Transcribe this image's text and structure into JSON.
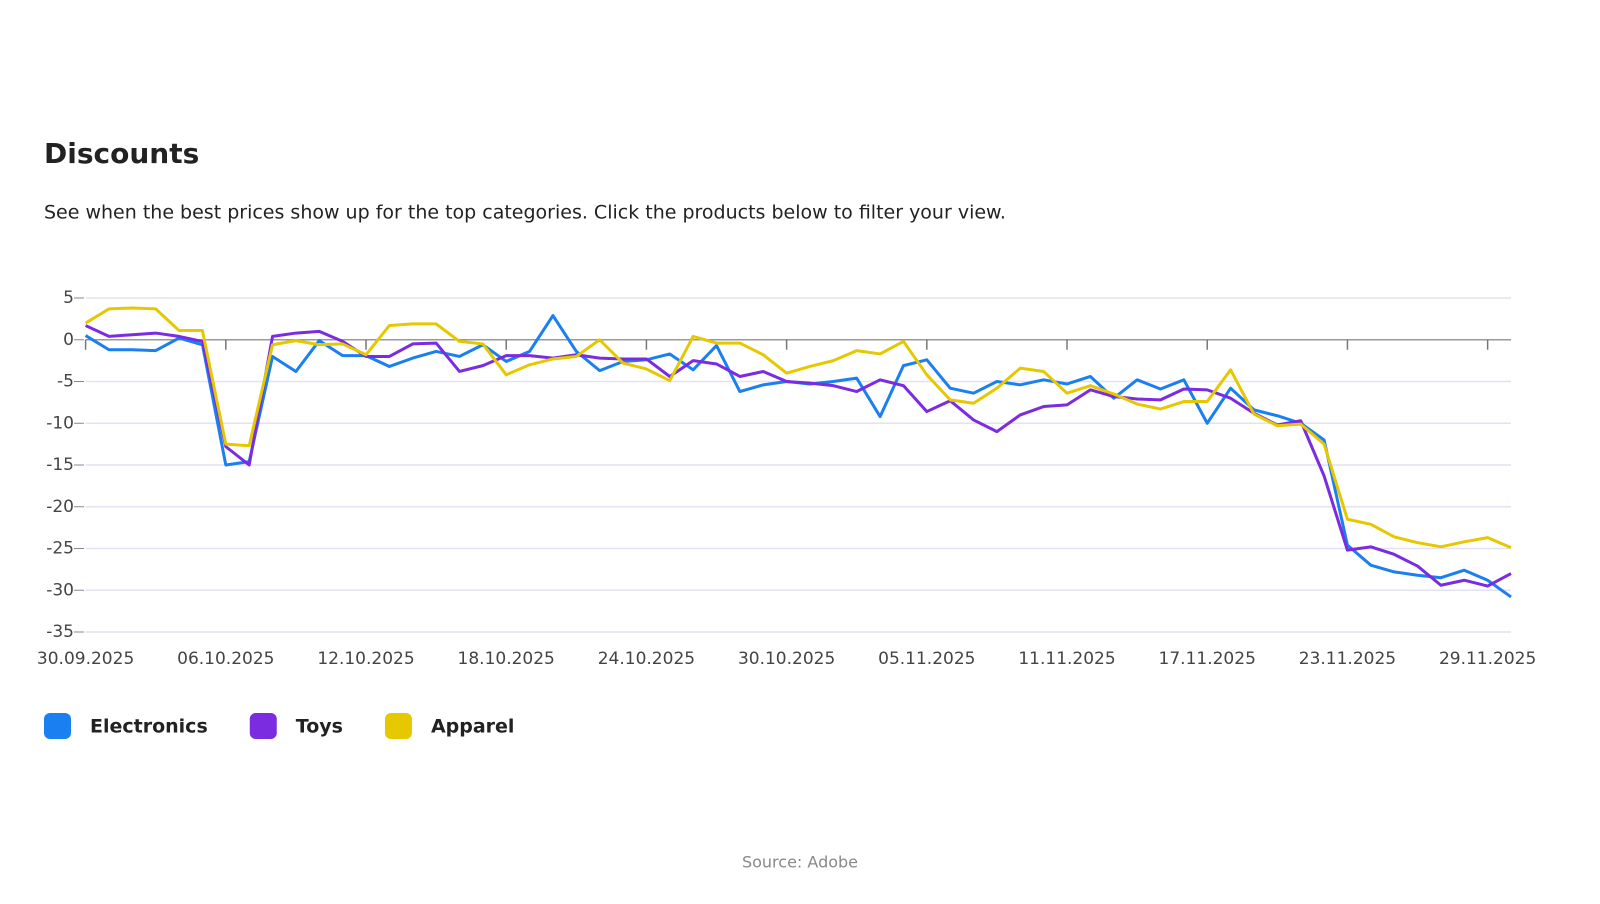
{
  "chart_data": {
    "type": "line",
    "title": "Discounts",
    "subtitle": "See when the best prices show up for the top categories. Click the products below to filter your view.",
    "source": "Source: Adobe",
    "x": [
      "30.09.2025",
      "01.10.2025",
      "02.10.2025",
      "03.10.2025",
      "04.10.2025",
      "05.10.2025",
      "06.10.2025",
      "07.10.2025",
      "08.10.2025",
      "09.10.2025",
      "10.10.2025",
      "11.10.2025",
      "12.10.2025",
      "13.10.2025",
      "14.10.2025",
      "15.10.2025",
      "16.10.2025",
      "17.10.2025",
      "18.10.2025",
      "19.10.2025",
      "20.10.2025",
      "21.10.2025",
      "22.10.2025",
      "23.10.2025",
      "24.10.2025",
      "25.10.2025",
      "26.10.2025",
      "27.10.2025",
      "28.10.2025",
      "29.10.2025",
      "30.10.2025",
      "31.10.2025",
      "01.11.2025",
      "02.11.2025",
      "03.11.2025",
      "04.11.2025",
      "05.11.2025",
      "06.11.2025",
      "07.11.2025",
      "08.11.2025",
      "09.11.2025",
      "10.11.2025",
      "11.11.2025",
      "12.11.2025",
      "13.11.2025",
      "14.11.2025",
      "15.11.2025",
      "16.11.2025",
      "17.11.2025",
      "18.11.2025",
      "19.11.2025",
      "20.11.2025",
      "21.11.2025",
      "22.11.2025",
      "23.11.2025",
      "24.11.2025",
      "25.11.2025",
      "26.11.2025",
      "27.11.2025",
      "28.11.2025",
      "29.11.2025",
      "30.11.2025"
    ],
    "xticks": [
      "30.09.2025",
      "06.10.2025",
      "12.10.2025",
      "18.10.2025",
      "24.10.2025",
      "30.10.2025",
      "05.11.2025",
      "11.11.2025",
      "17.11.2025",
      "23.11.2025",
      "29.11.2025"
    ],
    "ylim": [
      -35,
      5
    ],
    "yticks": [
      5,
      0,
      -5,
      -10,
      -15,
      -20,
      -25,
      -30,
      -35
    ],
    "grid": true,
    "series": [
      {
        "name": "Electronics",
        "color": "#1a7ff0",
        "values": [
          0.5,
          -1.2,
          -1.2,
          -1.3,
          0.2,
          -0.6,
          -15,
          -14.6,
          -2,
          -3.8,
          -0.1,
          -1.9,
          -1.9,
          -3.2,
          -2.2,
          -1.4,
          -2,
          -0.6,
          -2.6,
          -1.4,
          2.9,
          -1.4,
          -3.7,
          -2.6,
          -2.4,
          -1.7,
          -3.6,
          -0.7,
          -6.2,
          -5.4,
          -5,
          -5.3,
          -5,
          -4.6,
          -9.2,
          -3.1,
          -2.4,
          -5.8,
          -6.4,
          -5,
          -5.4,
          -4.8,
          -5.3,
          -4.4,
          -7,
          -4.8,
          -5.9,
          -4.8,
          -10,
          -5.8,
          -8.4,
          -9.1,
          -10,
          -12,
          -24.6,
          -27,
          -27.8,
          -28.2,
          -28.5,
          -27.6,
          -28.8,
          -30.8
        ]
      },
      {
        "name": "Toys",
        "color": "#7b2be0",
        "values": [
          1.7,
          0.4,
          0.6,
          0.8,
          0.4,
          -0.2,
          -12.8,
          -15,
          0.4,
          0.8,
          1,
          -0.2,
          -2,
          -2,
          -0.5,
          -0.4,
          -3.8,
          -3.1,
          -1.9,
          -1.9,
          -2.2,
          -1.8,
          -2.2,
          -2.3,
          -2.3,
          -4.4,
          -2.5,
          -2.9,
          -4.4,
          -3.8,
          -5,
          -5.2,
          -5.5,
          -6.2,
          -4.8,
          -5.5,
          -8.6,
          -7.3,
          -9.6,
          -11,
          -9,
          -8,
          -7.8,
          -6,
          -6.8,
          -7.1,
          -7.2,
          -5.9,
          -6,
          -7,
          -8.8,
          -10.2,
          -9.7,
          -16.3,
          -25.2,
          -24.8,
          -25.7,
          -27.1,
          -29.4,
          -28.8,
          -29.5,
          -28
        ]
      },
      {
        "name": "Apparel",
        "color": "#e6c800",
        "values": [
          2,
          3.7,
          3.8,
          3.7,
          1.1,
          1.1,
          -12.5,
          -12.7,
          -0.6,
          -0.1,
          -0.6,
          -0.5,
          -1.8,
          1.7,
          1.9,
          1.9,
          -0.2,
          -0.5,
          -4.2,
          -3,
          -2.3,
          -2,
          0,
          -2.8,
          -3.5,
          -4.9,
          0.4,
          -0.4,
          -0.4,
          -1.8,
          -4,
          -3.2,
          -2.5,
          -1.3,
          -1.7,
          -0.2,
          -4.2,
          -7.2,
          -7.6,
          -5.8,
          -3.4,
          -3.8,
          -6.4,
          -5.5,
          -6.5,
          -7.7,
          -8.3,
          -7.4,
          -7.4,
          -3.6,
          -8.9,
          -10.3,
          -10.1,
          -12.5,
          -21.5,
          -22.1,
          -23.6,
          -24.3,
          -24.8,
          -24.2,
          -23.7,
          -24.9
        ]
      }
    ]
  }
}
